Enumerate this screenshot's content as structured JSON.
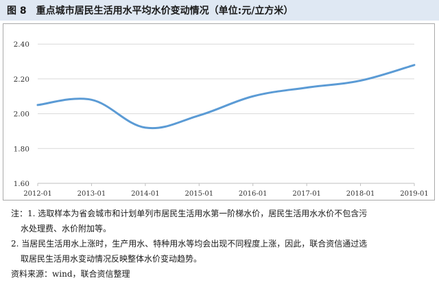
{
  "figure": {
    "number": "图 8",
    "title": "重点城市居民生活用水平均水价变动情况（单位:元/立方米）"
  },
  "chart_data": {
    "type": "line",
    "x": [
      "2012-01",
      "2013-01",
      "2014-01",
      "2015-01",
      "2016-01",
      "2017-01",
      "2018-01",
      "2019-01"
    ],
    "series": [
      {
        "values": [
          2.05,
          2.08,
          1.92,
          1.99,
          2.1,
          2.15,
          2.19,
          2.28
        ]
      }
    ],
    "yticks": [
      "1.60",
      "1.80",
      "2.00",
      "2.20",
      "2.40"
    ],
    "ylim": [
      1.6,
      2.46
    ],
    "grid": "horizontal",
    "line_color": "#5b9bd5"
  },
  "notes": {
    "line1a": "注：1. 选取样本为省会城市和计划单列市居民生活用水第一阶梯水价，居民生活用水水价不包含污",
    "line1b": "水处理费、水价附加等。",
    "line2a": "2. 当居民生活用水上涨时，生产用水、特种用水等均会出现不同程度上涨，因此，联合资信通过选",
    "line2b": "取居民生活用水变动情况反映整体水价变动趋势。",
    "source": "资料来源：wind，联合资信整理"
  }
}
